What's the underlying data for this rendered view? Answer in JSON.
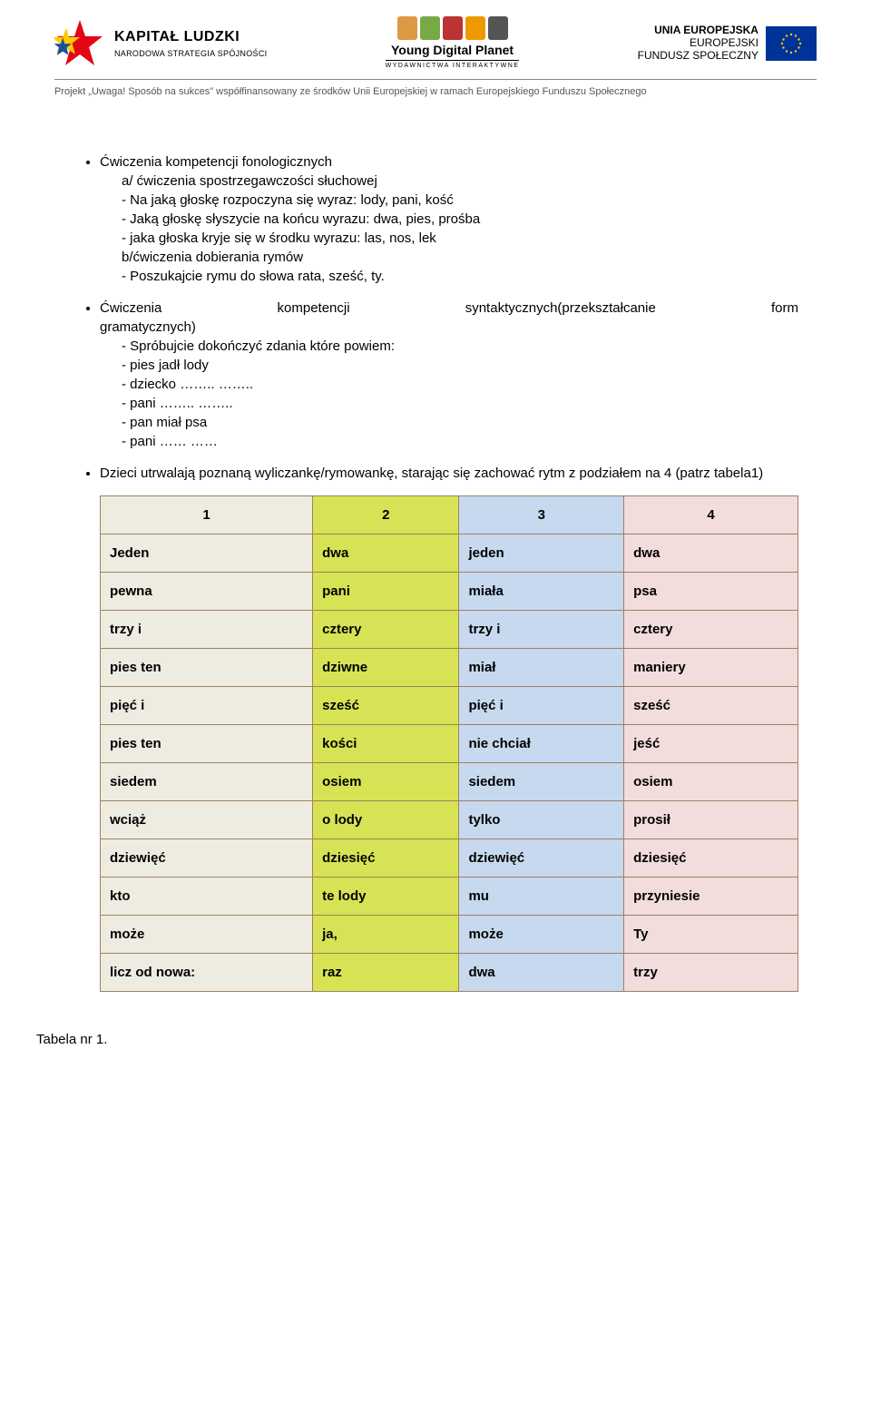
{
  "header": {
    "kapital_title": "KAPITAŁ LUDZKI",
    "kapital_sub": "NARODOWA STRATEGIA SPÓJNOŚCI",
    "ydp_title": "Young Digital Planet",
    "ydp_sub": "WYDAWNICTWA INTERAKTYWNE",
    "eu_l1": "UNIA EUROPEJSKA",
    "eu_l2": "EUROPEJSKI",
    "eu_l3": "FUNDUSZ SPOŁECZNY",
    "project_line": "Projekt „Uwaga! Sposób na sukces\" współfinansowany ze środków Unii Europejskiej w ramach Europejskiego Funduszu Społecznego"
  },
  "bullets": {
    "b1_title": "Ćwiczenia kompetencji fonologicznych",
    "b1_a": "a/ ćwiczenia spostrzegawczości słuchowej",
    "b1_a1": "- Na jaką głoskę rozpoczyna się wyraz: lody, pani, kość",
    "b1_a2": "- Jaką głoskę słyszycie na końcu wyrazu: dwa, pies, prośba",
    "b1_a3": "- jaka głoska kryje się w środku wyrazu: las, nos, lek",
    "b1_b": "b/ćwiczenia dobierania rymów",
    "b1_b1": "- Poszukajcie rymu do słowa rata, sześć, ty.",
    "b2_title_a": "Ćwiczenia",
    "b2_title_b": "kompetencji",
    "b2_title_c": "syntaktycznych(przekształcanie",
    "b2_title_d": "form",
    "b2_title_e": "gramatycznych)",
    "b2_1": "- Spróbujcie dokończyć zdania które powiem:",
    "b2_2": "- pies jadł lody",
    "b2_3": "- dziecko …….. ……..",
    "b2_4": "- pani …….. ……..",
    "b2_5": "- pan miał psa",
    "b2_6": "- pani …… ……",
    "b3": "Dzieci utrwalają poznaną wyliczankę/rymowankę, starając się zachować rytm z podziałem na 4 (patrz tabela1)"
  },
  "table": {
    "columns": [
      "1",
      "2",
      "3",
      "4"
    ],
    "col_colors": [
      "#eeece1",
      "#d7e354",
      "#c6d9ee",
      "#f2dcdc"
    ],
    "border_color": "#a08060",
    "rows": [
      [
        "Jeden",
        "dwa",
        "jeden",
        "dwa"
      ],
      [
        "pewna",
        "pani",
        "miała",
        "psa"
      ],
      [
        "trzy i",
        "cztery",
        "trzy i",
        "cztery"
      ],
      [
        "pies ten",
        "dziwne",
        "miał",
        "maniery"
      ],
      [
        "pięć i",
        "sześć",
        "pięć i",
        "sześć"
      ],
      [
        "pies ten",
        "kości",
        "nie chciał",
        "jeść"
      ],
      [
        "siedem",
        "osiem",
        "siedem",
        "osiem"
      ],
      [
        "wciąż",
        "o lody",
        "tylko",
        "prosił"
      ],
      [
        "dziewięć",
        "dziesięć",
        "dziewięć",
        "dziesięć"
      ],
      [
        "kto",
        "te lody",
        "mu",
        "przyniesie"
      ],
      [
        "może",
        "ja,",
        "może",
        "Ty"
      ],
      [
        "licz od nowa:",
        "raz",
        "dwa",
        "trzy"
      ]
    ],
    "caption": "Tabela nr 1."
  }
}
